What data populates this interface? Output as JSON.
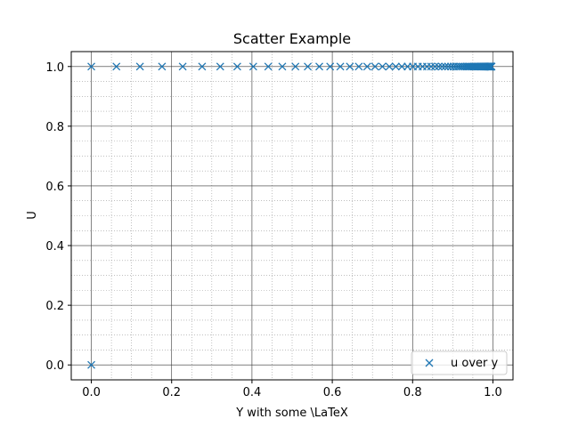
{
  "chart_data": {
    "type": "scatter",
    "title": "Scatter Example",
    "xlabel": "Y with some \\LaTeX",
    "ylabel": "U",
    "xlim": [
      -0.05,
      1.05
    ],
    "ylim": [
      -0.05,
      1.05
    ],
    "xticks": [
      0.0,
      0.2,
      0.4,
      0.6,
      0.8,
      1.0
    ],
    "yticks": [
      0.0,
      0.2,
      0.4,
      0.6,
      0.8,
      1.0
    ],
    "xtick_labels": [
      "0.0",
      "0.2",
      "0.4",
      "0.6",
      "0.8",
      "1.0"
    ],
    "ytick_labels": [
      "0.0",
      "0.2",
      "0.4",
      "0.6",
      "0.8",
      "1.0"
    ],
    "grid": true,
    "minor_grid": true,
    "marker": "x",
    "color": "#1f77b4",
    "legend_position": "lower-right",
    "series": [
      {
        "name": "u over y",
        "x": [
          0.0,
          0.0,
          0.0625,
          0.1211,
          0.176,
          0.2275,
          0.2758,
          0.321,
          0.3634,
          0.4032,
          0.4405,
          0.4755,
          0.5082,
          0.5389,
          0.5677,
          0.5947,
          0.62,
          0.6438,
          0.666,
          0.6869,
          0.7065,
          0.7248,
          0.742,
          0.7581,
          0.7733,
          0.7874,
          0.8007,
          0.8132,
          0.8248,
          0.8358,
          0.846,
          0.8556,
          0.8647,
          0.8731,
          0.8811,
          0.8885,
          0.8955,
          0.902,
          0.9082,
          0.9139,
          0.9193,
          0.9244,
          0.9291,
          0.9336,
          0.9377,
          0.9416,
          0.9453,
          0.9487,
          0.9519,
          0.955,
          0.9578,
          0.9604,
          0.9629,
          0.9652,
          0.9674,
          0.9694,
          0.9714,
          0.9732,
          0.9749,
          0.9764,
          0.9779,
          0.9793,
          0.9806,
          0.9818,
          0.983,
          0.984,
          0.985,
          0.986,
          0.9869,
          0.9877,
          0.9884,
          0.9892,
          0.9898,
          0.9905,
          0.9911,
          0.9916,
          0.9921,
          0.9926,
          0.9931,
          0.9935,
          0.9939,
          0.9943,
          0.9946,
          0.995,
          0.9953,
          0.9956,
          0.9959,
          0.9961,
          0.9964,
          0.9966
        ],
        "y": [
          0.0,
          1.0,
          1.0,
          1.0,
          1.0,
          1.0,
          1.0,
          1.0,
          1.0,
          1.0,
          1.0,
          1.0,
          1.0,
          1.0,
          1.0,
          1.0,
          1.0,
          1.0,
          1.0,
          1.0,
          1.0,
          1.0,
          1.0,
          1.0,
          1.0,
          1.0,
          1.0,
          1.0,
          1.0,
          1.0,
          1.0,
          1.0,
          1.0,
          1.0,
          1.0,
          1.0,
          1.0,
          1.0,
          1.0,
          1.0,
          1.0,
          1.0,
          1.0,
          1.0,
          1.0,
          1.0,
          1.0,
          1.0,
          1.0,
          1.0,
          1.0,
          1.0,
          1.0,
          1.0,
          1.0,
          1.0,
          1.0,
          1.0,
          1.0,
          1.0,
          1.0,
          1.0,
          1.0,
          1.0,
          1.0,
          1.0,
          1.0,
          1.0,
          1.0,
          1.0,
          1.0,
          1.0,
          1.0,
          1.0,
          1.0,
          1.0,
          1.0,
          1.0,
          1.0,
          1.0,
          1.0,
          1.0,
          1.0,
          1.0,
          1.0,
          1.0,
          1.0,
          1.0,
          1.0,
          1.0
        ]
      }
    ]
  }
}
